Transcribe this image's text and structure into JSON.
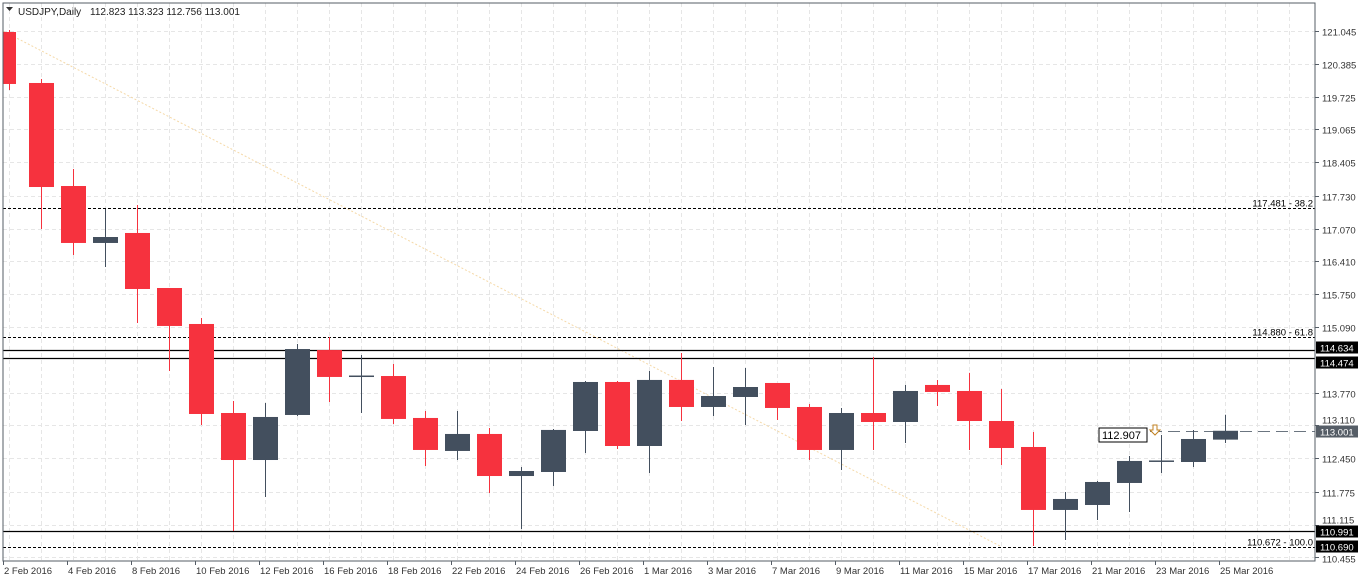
{
  "header": {
    "symbol": "USDJPY,Daily",
    "ohlc": "112.823 113.323 112.756 113.001"
  },
  "colors": {
    "bear": "#f6323e",
    "bull": "#434f5e",
    "grid": "#e6e6e6",
    "fib_trend": "#f5d9a8"
  },
  "chart_data": {
    "type": "candlestick",
    "title": "USDJPY,Daily",
    "ylim": [
      110.455,
      121.045
    ],
    "y_ticks": [
      "121.045",
      "120.385",
      "119.725",
      "119.065",
      "118.405",
      "117.730",
      "117.070",
      "116.410",
      "115.750",
      "115.090",
      "113.770",
      "113.110",
      "112.450",
      "111.775",
      "111.115",
      "110.455"
    ],
    "y_tick_values": [
      121.045,
      120.385,
      119.725,
      119.065,
      118.405,
      117.73,
      117.07,
      116.41,
      115.75,
      115.09,
      113.77,
      113.11,
      112.45,
      111.775,
      111.115,
      110.455
    ],
    "x_labels": [
      "2 Feb 2016",
      "4 Feb 2016",
      "8 Feb 2016",
      "10 Feb 2016",
      "12 Feb 2016",
      "16 Feb 2016",
      "18 Feb 2016",
      "22 Feb 2016",
      "24 Feb 2016",
      "26 Feb 2016",
      "1 Mar 2016",
      "3 Mar 2016",
      "7 Mar 2016",
      "9 Mar 2016",
      "11 Mar 2016",
      "15 Mar 2016",
      "17 Mar 2016",
      "21 Mar 2016",
      "23 Mar 2016",
      "25 Mar 2016"
    ],
    "candles": [
      [
        121.025,
        121.065,
        119.858,
        119.979
      ],
      [
        119.999,
        120.079,
        117.061,
        117.906
      ],
      [
        117.926,
        118.268,
        116.538,
        116.78
      ],
      [
        116.78,
        117.464,
        116.297,
        116.9
      ],
      [
        116.981,
        117.544,
        115.17,
        115.854
      ],
      [
        115.874,
        115.874,
        114.204,
        115.11
      ],
      [
        115.15,
        115.27,
        113.118,
        113.339
      ],
      [
        113.359,
        113.6,
        110.985,
        112.413
      ],
      [
        112.413,
        113.56,
        111.669,
        113.279
      ],
      [
        113.319,
        114.747,
        113.299,
        114.646
      ],
      [
        114.626,
        114.888,
        113.58,
        114.084
      ],
      [
        114.103,
        114.526,
        113.359,
        114.113
      ],
      [
        114.103,
        114.345,
        113.138,
        113.239
      ],
      [
        113.259,
        113.4,
        112.293,
        112.615
      ],
      [
        112.595,
        113.4,
        112.413,
        112.937
      ],
      [
        112.937,
        113.058,
        111.749,
        112.091
      ],
      [
        112.091,
        112.273,
        111.025,
        112.192
      ],
      [
        112.172,
        113.038,
        111.89,
        113.018
      ],
      [
        112.997,
        114.004,
        112.554,
        113.983
      ],
      [
        113.983,
        114.004,
        112.635,
        112.695
      ],
      [
        112.695,
        114.204,
        112.152,
        114.024
      ],
      [
        114.024,
        114.566,
        113.198,
        113.48
      ],
      [
        113.48,
        114.285,
        113.299,
        113.701
      ],
      [
        113.681,
        114.265,
        113.118,
        113.882
      ],
      [
        113.963,
        113.963,
        113.218,
        113.46
      ],
      [
        113.48,
        113.54,
        112.413,
        112.615
      ],
      [
        112.615,
        113.46,
        112.212,
        113.359
      ],
      [
        113.359,
        114.486,
        112.615,
        113.178
      ],
      [
        113.178,
        113.923,
        112.756,
        113.802
      ],
      [
        113.923,
        114.024,
        113.5,
        113.782
      ],
      [
        113.802,
        114.165,
        112.615,
        113.198
      ],
      [
        113.198,
        113.842,
        112.313,
        112.655
      ],
      [
        112.675,
        112.977,
        110.683,
        111.408
      ],
      [
        111.408,
        111.77,
        110.804,
        111.629
      ],
      [
        111.508,
        111.991,
        111.206,
        111.971
      ],
      [
        111.951,
        112.494,
        111.367,
        112.394
      ],
      [
        112.394,
        112.917,
        112.152,
        112.404
      ],
      [
        112.373,
        113.018,
        112.273,
        112.836
      ],
      [
        112.823,
        113.323,
        112.756,
        113.001
      ]
    ],
    "fib_levels": [
      {
        "price": 117.481,
        "label": "117.481 - 38.2"
      },
      {
        "price": 114.88,
        "label": "114.880 - 61.8"
      },
      {
        "price": 110.672,
        "label": "110.672 - 100.0"
      }
    ],
    "hlines": [
      {
        "price": 114.634,
        "label": "114.634"
      },
      {
        "price": 114.474,
        "label": "114.474"
      },
      {
        "price": 110.991,
        "label": "110.991"
      },
      {
        "price": 110.69,
        "label": "110.690"
      }
    ],
    "bid": {
      "price": 113.001,
      "label": "113.001"
    },
    "price_tag": {
      "price": 112.907,
      "label": "112.907"
    },
    "fib_trend": {
      "from": [
        0,
        121.045
      ],
      "to": [
        31,
        110.672
      ]
    }
  }
}
